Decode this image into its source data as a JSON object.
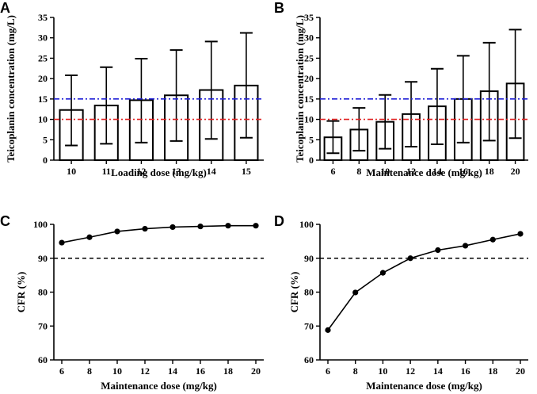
{
  "chart_data": [
    {
      "panel": "A",
      "type": "bar",
      "categories": [
        "10",
        "11",
        "12",
        "13",
        "14",
        "15"
      ],
      "values": [
        12.3,
        13.4,
        14.7,
        15.9,
        17.2,
        18.3
      ],
      "error_low": [
        3.6,
        4.0,
        4.3,
        4.7,
        5.2,
        5.5
      ],
      "error_high": [
        20.8,
        22.8,
        24.9,
        27.0,
        29.1,
        31.2
      ],
      "reference_lines": [
        {
          "y": 15,
          "color": "#1f1fd6"
        },
        {
          "y": 10,
          "color": "#e02020"
        }
      ],
      "xlabel": "Loading dose (mg/kg)",
      "ylabel": "Teicoplanin concentration (mg/L)",
      "ylim": [
        0,
        35
      ],
      "yticks": [
        "0",
        "5",
        "10",
        "15",
        "20",
        "25",
        "30",
        "35"
      ]
    },
    {
      "panel": "B",
      "type": "bar",
      "categories": [
        "6",
        "8",
        "10",
        "12",
        "14",
        "16",
        "18",
        "20"
      ],
      "values": [
        5.6,
        7.5,
        9.4,
        11.3,
        13.2,
        15.0,
        16.9,
        18.8
      ],
      "error_low": [
        1.7,
        2.3,
        2.8,
        3.3,
        3.9,
        4.3,
        4.8,
        5.4
      ],
      "error_high": [
        9.6,
        12.8,
        16.0,
        19.2,
        22.4,
        25.6,
        28.8,
        32.0
      ],
      "reference_lines": [
        {
          "y": 15,
          "color": "#1f1fd6"
        },
        {
          "y": 10,
          "color": "#e02020"
        }
      ],
      "xlabel": "Maintenance dose (mg/kg)",
      "ylabel": "Teicoplanin concentration (mg/L)",
      "ylim": [
        0,
        35
      ],
      "yticks": [
        "0",
        "5",
        "10",
        "15",
        "20",
        "25",
        "30",
        "35"
      ]
    },
    {
      "panel": "C",
      "type": "line",
      "x": [
        6,
        8,
        10,
        12,
        14,
        16,
        18,
        20
      ],
      "values": [
        94.6,
        96.2,
        97.9,
        98.7,
        99.2,
        99.4,
        99.6,
        99.6
      ],
      "reference_lines": [
        {
          "y": 90,
          "color": "#000000"
        }
      ],
      "xlabel": "Maintenance dose (mg/kg)",
      "ylabel": "CFR (%)",
      "xlim": [
        6,
        20
      ],
      "ylim": [
        60,
        100
      ],
      "xticks": [
        "6",
        "8",
        "10",
        "12",
        "14",
        "16",
        "18",
        "20"
      ],
      "yticks": [
        "60",
        "70",
        "80",
        "90",
        "100"
      ]
    },
    {
      "panel": "D",
      "type": "line",
      "x": [
        6,
        8,
        10,
        12,
        14,
        16,
        18,
        20
      ],
      "values": [
        68.8,
        79.9,
        85.7,
        90.0,
        92.4,
        93.7,
        95.5,
        97.2
      ],
      "reference_lines": [
        {
          "y": 90,
          "color": "#000000"
        }
      ],
      "xlabel": "Maintenance dose (mg/kg)",
      "ylabel": "CFR (%)",
      "xlim": [
        6,
        20
      ],
      "ylim": [
        60,
        100
      ],
      "xticks": [
        "6",
        "8",
        "10",
        "12",
        "14",
        "16",
        "18",
        "20"
      ],
      "yticks": [
        "60",
        "70",
        "80",
        "90",
        "100"
      ]
    }
  ]
}
